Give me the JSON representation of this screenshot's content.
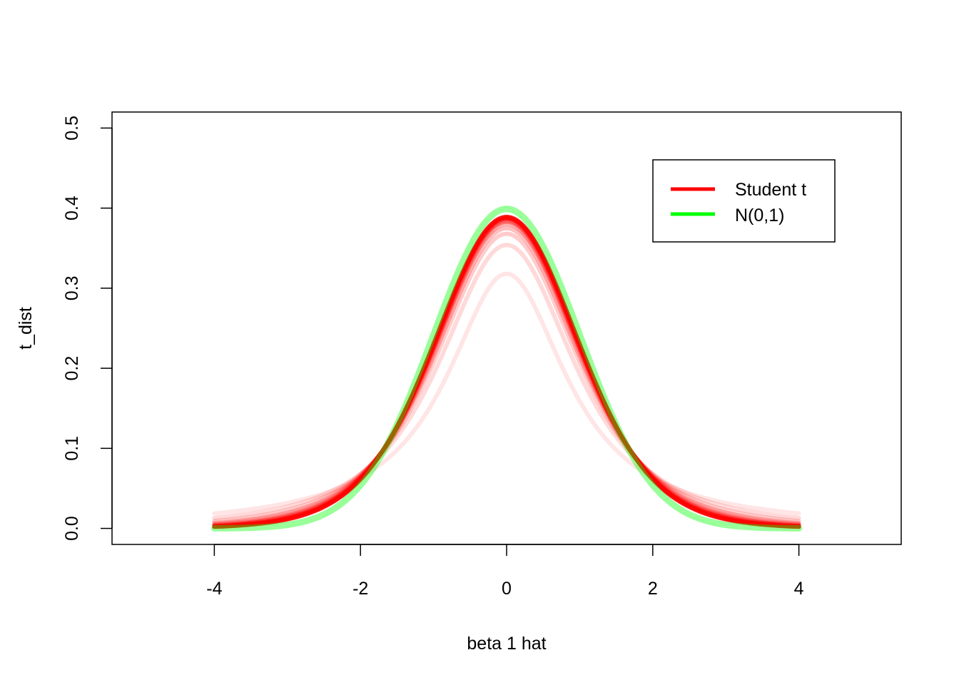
{
  "chart_data": {
    "type": "line",
    "title": "",
    "xlabel": "beta 1 hat",
    "ylabel": "t_dist",
    "xlim": [
      -5.4,
      5.4
    ],
    "ylim": [
      -0.02,
      0.52
    ],
    "x_ticks": [
      -4,
      -2,
      0,
      2,
      4
    ],
    "x_tick_labels": [
      "-4",
      "-2",
      "0",
      "2",
      "4"
    ],
    "y_ticks": [
      0.0,
      0.1,
      0.2,
      0.3,
      0.4,
      0.5
    ],
    "y_tick_labels": [
      "0.0",
      "0.1",
      "0.2",
      "0.3",
      "0.4",
      "0.5"
    ],
    "x_range": [
      -4,
      4
    ],
    "grid": false,
    "legend": {
      "position": "top-right",
      "entries": [
        {
          "label": "Student t",
          "color": "#ff0000"
        },
        {
          "label": "N(0,1)",
          "color": "#00ff00"
        }
      ]
    },
    "series": [
      {
        "kind": "student_t",
        "df": 1,
        "peak": 0.318,
        "color": "#ff0000",
        "opacity": 0.1
      },
      {
        "kind": "student_t",
        "df": 2,
        "peak": 0.354,
        "color": "#ff0000",
        "opacity": 0.15
      },
      {
        "kind": "student_t",
        "df": 3,
        "peak": 0.368,
        "color": "#ff0000",
        "opacity": 0.2
      },
      {
        "kind": "student_t",
        "df": 4,
        "peak": 0.375,
        "color": "#ff0000",
        "opacity": 0.25
      },
      {
        "kind": "student_t",
        "df": 5,
        "peak": 0.38,
        "color": "#ff0000",
        "opacity": 0.3
      },
      {
        "kind": "student_t",
        "df": 6,
        "peak": 0.383,
        "color": "#ff0000",
        "opacity": 0.35
      },
      {
        "kind": "student_t",
        "df": 7,
        "peak": 0.385,
        "color": "#ff0000",
        "opacity": 0.45
      },
      {
        "kind": "student_t",
        "df": 8,
        "peak": 0.387,
        "color": "#ff0000",
        "opacity": 0.55
      },
      {
        "kind": "student_t",
        "df": 9,
        "peak": 0.388,
        "color": "#ff0000",
        "opacity": 0.7
      },
      {
        "kind": "student_t",
        "df": 10,
        "peak": 0.389,
        "color": "#ff0000",
        "opacity": 0.85
      },
      {
        "kind": "normal",
        "mean": 0,
        "sd": 1,
        "peak": 0.399,
        "color": "#00ff00",
        "opacity": 0.4
      }
    ]
  }
}
